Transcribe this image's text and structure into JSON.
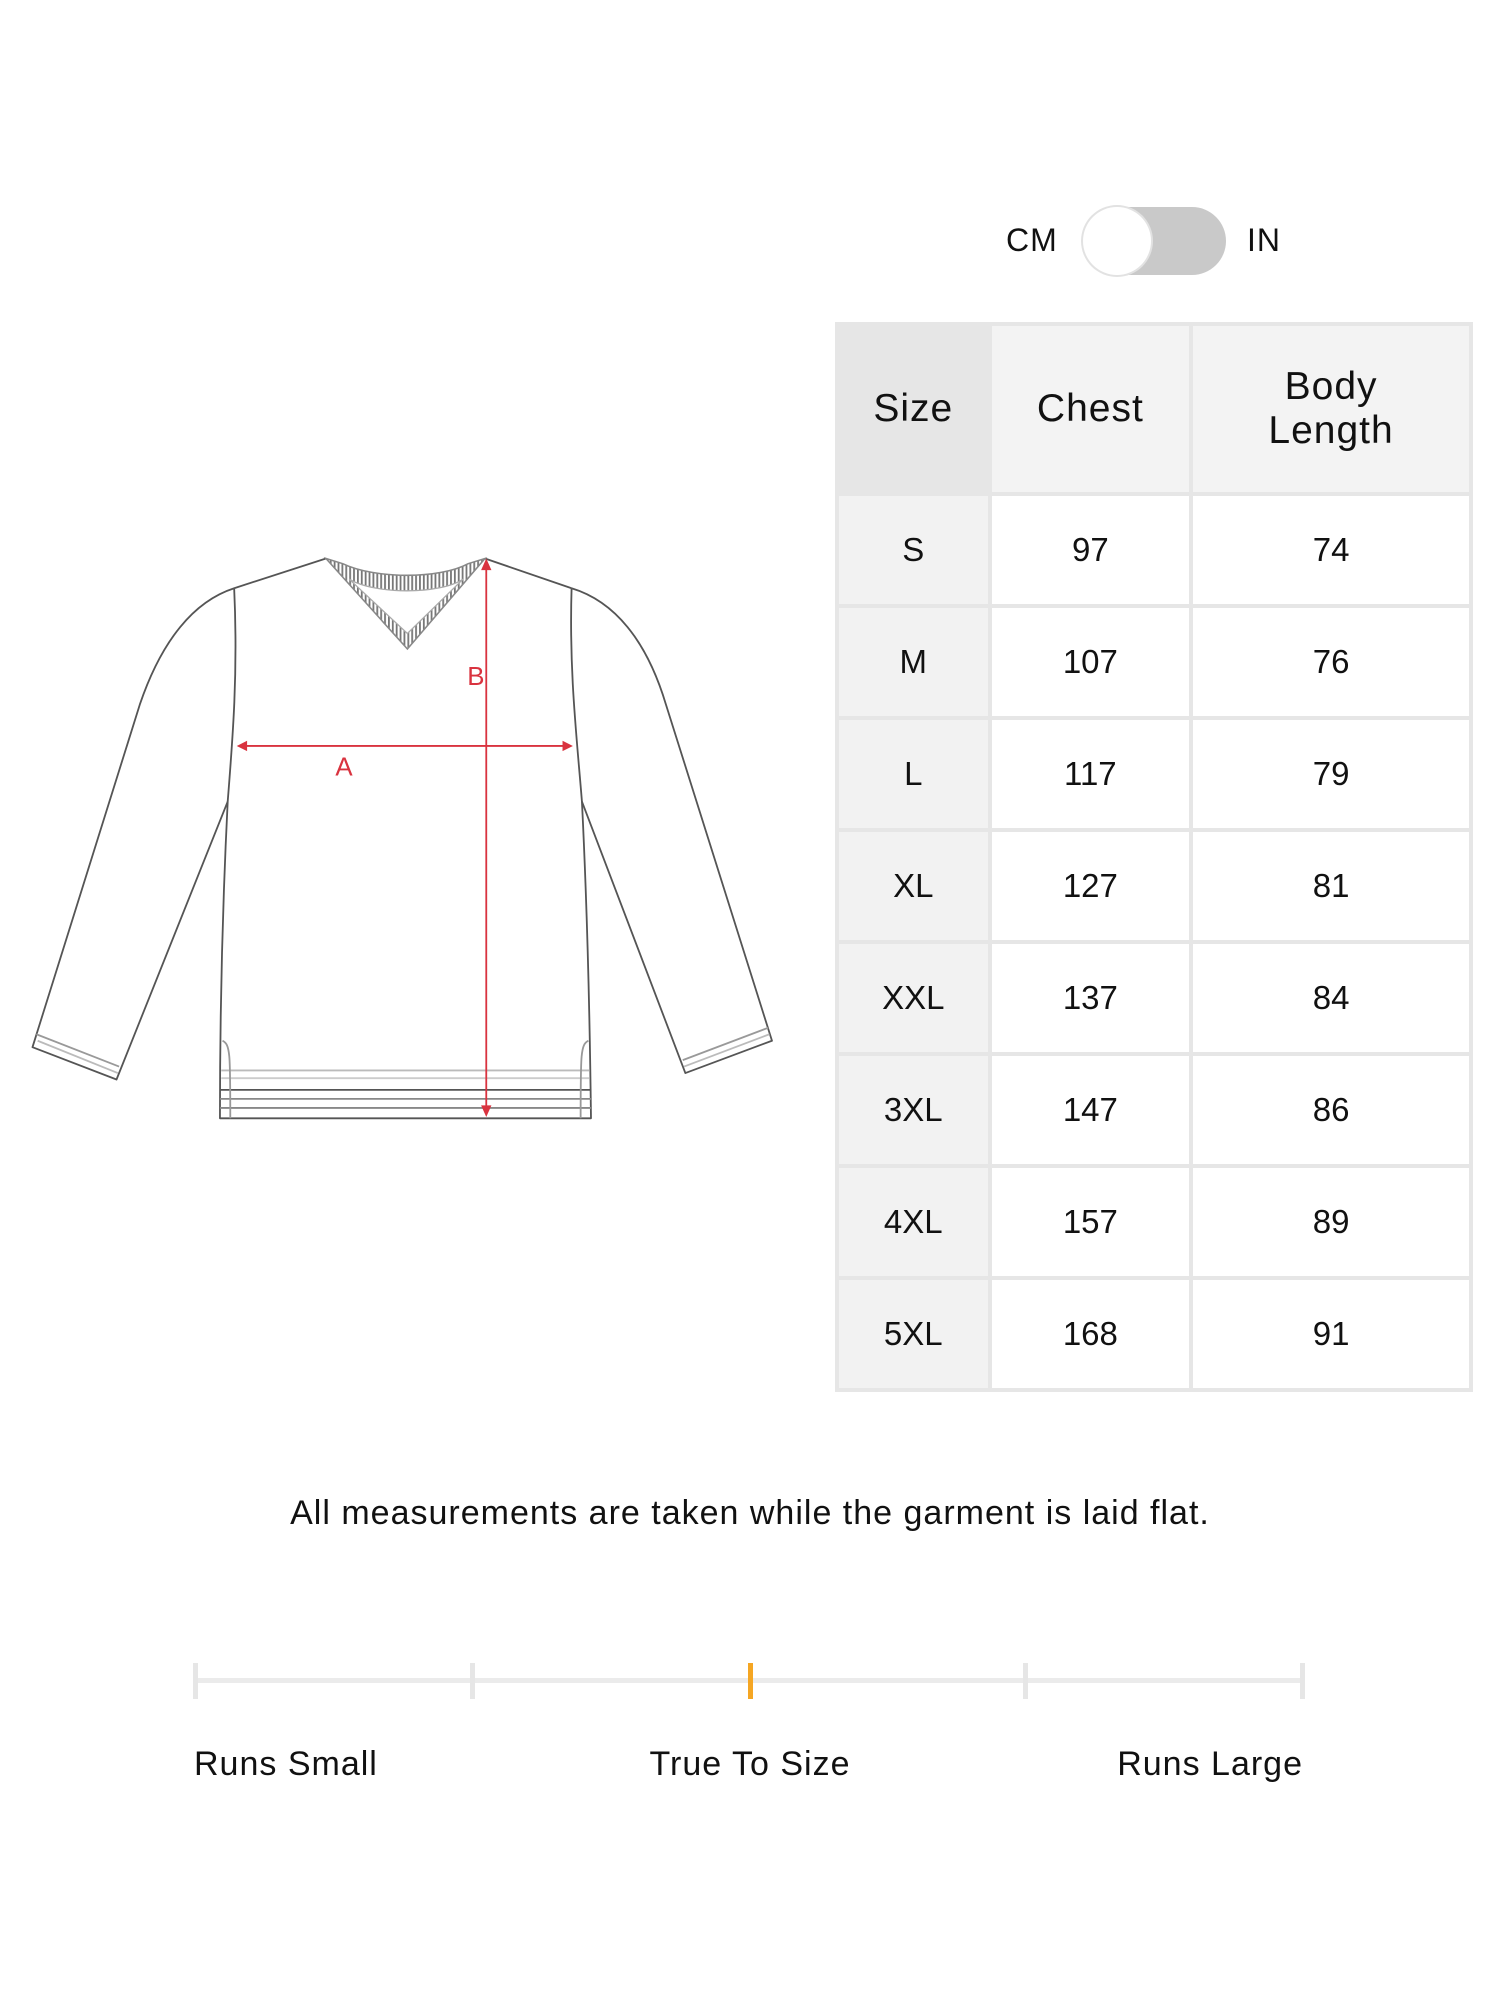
{
  "unit_toggle": {
    "left_label": "CM",
    "right_label": "IN",
    "selected": "CM"
  },
  "diagram": {
    "label_a": "A",
    "label_b": "B",
    "measure_color": "#d9333f",
    "outline_color": "#555555"
  },
  "size_table": {
    "headers": [
      "Size",
      "Chest",
      "Body Length"
    ],
    "rows": [
      [
        "S",
        "97",
        "74"
      ],
      [
        "M",
        "107",
        "76"
      ],
      [
        "L",
        "117",
        "79"
      ],
      [
        "XL",
        "127",
        "81"
      ],
      [
        "XXL",
        "137",
        "84"
      ],
      [
        "3XL",
        "147",
        "86"
      ],
      [
        "4XL",
        "157",
        "89"
      ],
      [
        "5XL",
        "168",
        "91"
      ]
    ]
  },
  "note": "All measurements are taken while the garment is laid flat.",
  "fit_scale": {
    "labels": [
      "Runs Small",
      "True To Size",
      "Runs Large"
    ],
    "steps": 5,
    "selected_step": 3,
    "accent_color": "#f5a623"
  }
}
